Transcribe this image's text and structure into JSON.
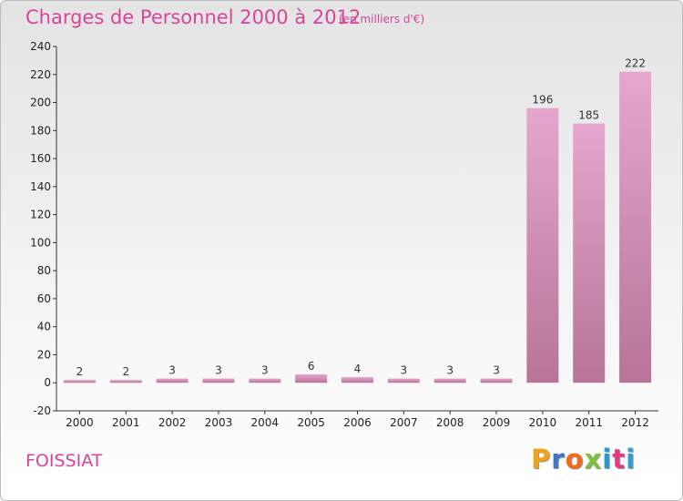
{
  "header": {
    "title": "Charges de Personnel 2000 à 2012",
    "subtitle": "(en milliers d'€)"
  },
  "footer": {
    "commune": "FOISSIAT",
    "logo_text": "Proxiti",
    "logo_colors": [
      "#f3a11b",
      "#3c78c8",
      "#f06a1a",
      "#7cc142",
      "#1e9ad6",
      "#e23a7c",
      "#2f9fd8"
    ]
  },
  "colors": {
    "bar_top": "#e6a6cf",
    "bar_bottom": "#b87498",
    "text_accent": "#d6449b"
  },
  "chart_data": {
    "type": "bar",
    "categories": [
      "2000",
      "2001",
      "2002",
      "2003",
      "2004",
      "2005",
      "2006",
      "2007",
      "2008",
      "2009",
      "2010",
      "2011",
      "2012"
    ],
    "values": [
      2,
      2,
      3,
      3,
      3,
      6,
      4,
      3,
      3,
      3,
      196,
      185,
      222
    ],
    "title": "Charges de Personnel 2000 à 2012",
    "xlabel": "",
    "ylabel": "",
    "ylim": [
      -20,
      240
    ],
    "yticks": [
      -20,
      0,
      20,
      40,
      60,
      80,
      100,
      120,
      140,
      160,
      180,
      200,
      220,
      240
    ],
    "grid": false,
    "legend": "none"
  }
}
